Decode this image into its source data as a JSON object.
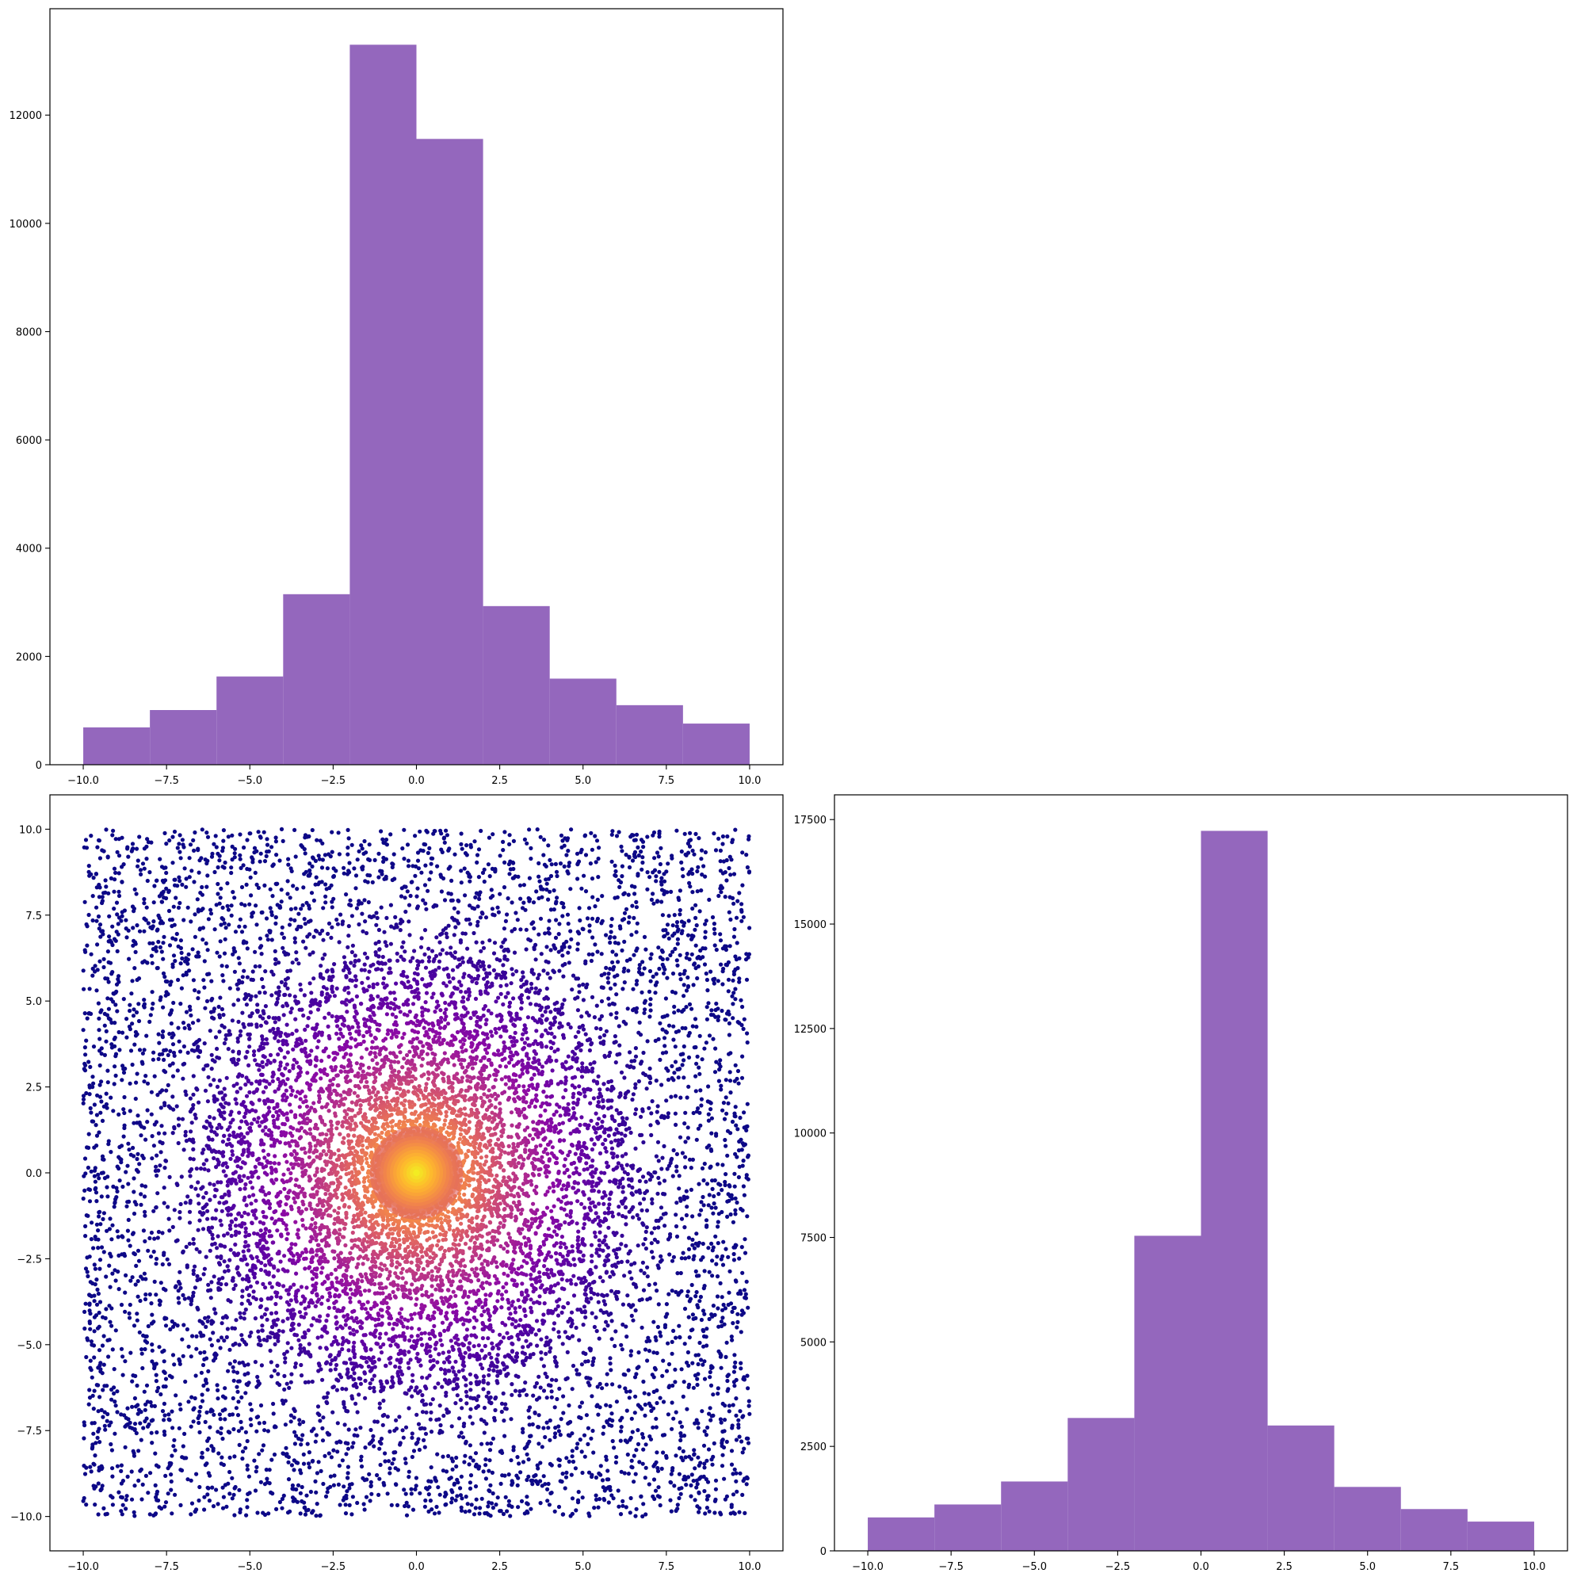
{
  "chart_data": [
    {
      "id": "hist-top-left",
      "type": "bar",
      "subtype": "histogram",
      "title": "",
      "xlabel": "",
      "ylabel": "",
      "bin_edges": [
        -10,
        -8,
        -6,
        -4,
        -2,
        0,
        2,
        4,
        6,
        8,
        10
      ],
      "values": [
        690,
        1010,
        1630,
        3150,
        13300,
        11560,
        2930,
        1590,
        1100,
        760
      ],
      "color": "#9467bd",
      "xlim": [
        -11,
        11
      ],
      "ylim": [
        0,
        13965
      ],
      "xticks": [
        -10.0,
        -7.5,
        -5.0,
        -2.5,
        0.0,
        2.5,
        5.0,
        7.5,
        10.0
      ],
      "xtick_labels": [
        "−10.0",
        "−7.5",
        "−5.0",
        "−2.5",
        "0.0",
        "2.5",
        "5.0",
        "7.5",
        "10.0"
      ],
      "yticks": [
        0,
        2000,
        4000,
        6000,
        8000,
        10000,
        12000
      ],
      "ytick_labels": [
        "0",
        "2000",
        "4000",
        "6000",
        "8000",
        "10000",
        "12000"
      ],
      "grid": false
    },
    {
      "id": "scatter-bottom-left",
      "type": "scatter",
      "title": "",
      "xlabel": "",
      "ylabel": "",
      "description_of_points": "uniformly scattered points on [-10,10]x[-10,10], colored by density with plasma colormap (dark blue at edges, yellow at center)",
      "x_range": [
        -10,
        10
      ],
      "y_range": [
        -10,
        10
      ],
      "colormap": "plasma",
      "colormap_stops": [
        "#0d0887",
        "#5302a3",
        "#8b0aa5",
        "#b83289",
        "#db5c68",
        "#f48849",
        "#febd2a",
        "#f0f921"
      ],
      "xlim": [
        -11,
        11
      ],
      "ylim": [
        -11,
        11
      ],
      "xticks": [
        -10.0,
        -7.5,
        -5.0,
        -2.5,
        0.0,
        2.5,
        5.0,
        7.5,
        10.0
      ],
      "xtick_labels": [
        "−10.0",
        "−7.5",
        "−5.0",
        "−2.5",
        "0.0",
        "2.5",
        "5.0",
        "7.5",
        "10.0"
      ],
      "yticks": [
        -10.0,
        -7.5,
        -5.0,
        -2.5,
        0.0,
        2.5,
        5.0,
        7.5,
        10.0
      ],
      "ytick_labels": [
        "−10.0",
        "−7.5",
        "−5.0",
        "−2.5",
        "0.0",
        "2.5",
        "5.0",
        "7.5",
        "10.0"
      ],
      "grid": false
    },
    {
      "id": "hist-bottom-right",
      "type": "bar",
      "subtype": "histogram",
      "title": "",
      "xlabel": "",
      "ylabel": "",
      "bin_edges": [
        -10,
        -8,
        -6,
        -4,
        -2,
        0,
        2,
        4,
        6,
        8,
        10
      ],
      "values": [
        800,
        1110,
        1660,
        3180,
        7540,
        17230,
        3000,
        1530,
        1000,
        700
      ],
      "color": "#9467bd",
      "xlim": [
        -11,
        11
      ],
      "ylim": [
        0,
        18092
      ],
      "xticks": [
        -10.0,
        -7.5,
        -5.0,
        -2.5,
        0.0,
        2.5,
        5.0,
        7.5,
        10.0
      ],
      "xtick_labels": [
        "−10.0",
        "−7.5",
        "−5.0",
        "−2.5",
        "0.0",
        "2.5",
        "5.0",
        "7.5",
        "10.0"
      ],
      "yticks": [
        0,
        2500,
        5000,
        7500,
        10000,
        12500,
        15000,
        17500
      ],
      "ytick_labels": [
        "0",
        "2500",
        "5000",
        "7500",
        "10000",
        "12500",
        "15000",
        "17500"
      ],
      "grid": false
    }
  ]
}
